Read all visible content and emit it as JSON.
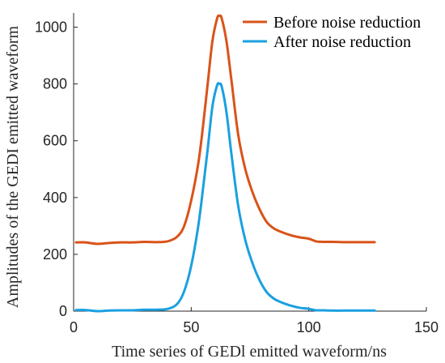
{
  "chart_data": {
    "type": "line",
    "title": "",
    "xlabel": "Time series of GEDl emitted waveform/ns",
    "ylabel": "Amplitudes of the GEDI emitted waveform",
    "xlim": [
      0,
      150
    ],
    "ylim": [
      0,
      1050
    ],
    "xticks": [
      0,
      50,
      100,
      150
    ],
    "yticks": [
      0,
      200,
      400,
      600,
      800,
      1000
    ],
    "grid": false,
    "legend_position": "top-right",
    "series": [
      {
        "name": "Before noise reduction",
        "color": "#D95319",
        "x": [
          1,
          5,
          10,
          15,
          20,
          25,
          30,
          35,
          40,
          44,
          47,
          50,
          53,
          55,
          57,
          59,
          61,
          62,
          63,
          65,
          67,
          70,
          73,
          76,
          79,
          82,
          85,
          88,
          92,
          96,
          100,
          103,
          106,
          110,
          115,
          120,
          125,
          128
        ],
        "y": [
          242,
          242,
          237,
          240,
          242,
          242,
          244,
          243,
          246,
          262,
          300,
          390,
          520,
          650,
          800,
          950,
          1030,
          1040,
          1030,
          950,
          820,
          620,
          500,
          420,
          360,
          315,
          292,
          280,
          268,
          260,
          255,
          246,
          244,
          244,
          243,
          243,
          243,
          243
        ]
      },
      {
        "name": "After noise reduction",
        "color": "#1AA0E0",
        "x": [
          1,
          5,
          10,
          15,
          20,
          25,
          30,
          35,
          40,
          44,
          47,
          50,
          53,
          55,
          57,
          59,
          61,
          62,
          63,
          65,
          67,
          70,
          73,
          76,
          79,
          82,
          85,
          88,
          92,
          96,
          100,
          103,
          106,
          110,
          115,
          120,
          125,
          128
        ],
        "y": [
          4,
          4,
          0,
          2,
          3,
          3,
          5,
          5,
          8,
          25,
          70,
          160,
          300,
          430,
          570,
          720,
          795,
          800,
          790,
          700,
          560,
          370,
          250,
          170,
          110,
          68,
          45,
          32,
          20,
          12,
          8,
          3,
          3,
          2,
          2,
          2,
          2,
          2
        ]
      }
    ]
  }
}
